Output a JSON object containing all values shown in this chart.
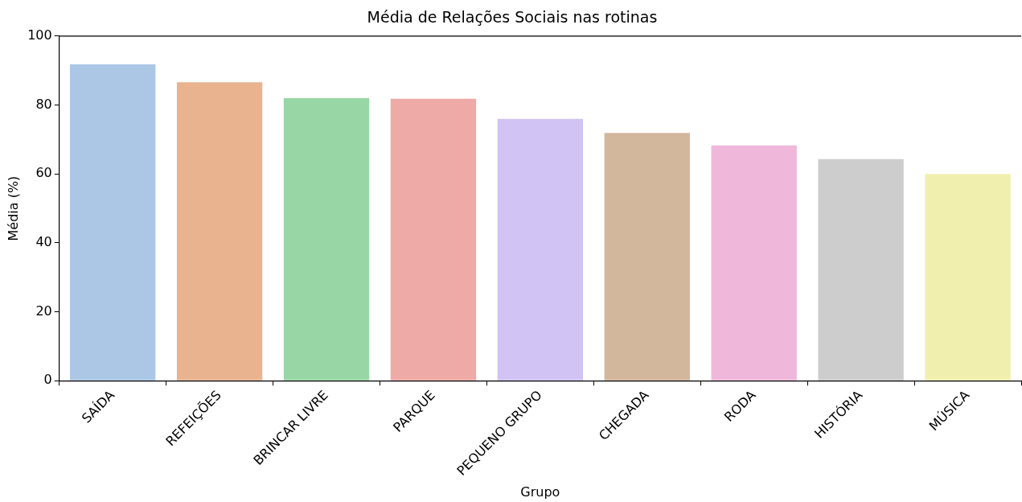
{
  "chart_data": {
    "type": "bar",
    "title": "Média de Relações Sociais nas rotinas",
    "xlabel": "Grupo",
    "ylabel": "Média (%)",
    "categories": [
      "SAÍDA",
      "REFEIÇÕES",
      "BRINCAR LIVRE",
      "PARQUE",
      "PEQUENO GRUPO",
      "CHEGADA",
      "RODA",
      "HISTÓRIA",
      "MÚSICA"
    ],
    "values": [
      91.8,
      86.6,
      82.0,
      81.8,
      76.0,
      71.9,
      68.3,
      64.3,
      60.0
    ],
    "colors": [
      "#abc7e5",
      "#e9b390",
      "#98d6a6",
      "#eeaaa6",
      "#d1c3f4",
      "#d3b79d",
      "#efb8da",
      "#cdcdcd",
      "#f0efad"
    ],
    "ylim": [
      0,
      100
    ],
    "yticks": [
      0,
      20,
      40,
      60,
      80,
      100
    ],
    "grid": false,
    "legend": false
  }
}
